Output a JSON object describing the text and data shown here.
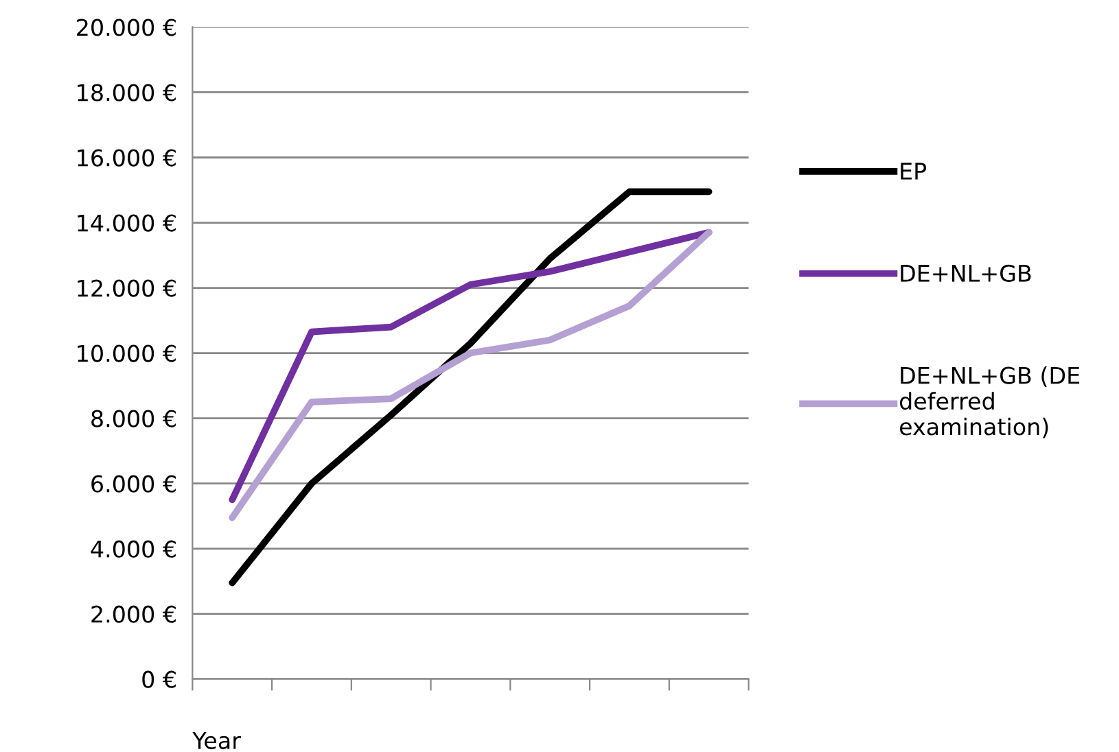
{
  "chart_data": {
    "type": "line",
    "xlabel": "Year",
    "categories": [
      null,
      null,
      null,
      null,
      null,
      null,
      null
    ],
    "series": [
      {
        "name": "EP",
        "color": "#000000",
        "values": [
          2950,
          6000,
          8100,
          10300,
          12900,
          14950,
          14950
        ]
      },
      {
        "name": "DE+NL+GB",
        "color": "#7030a0",
        "values": [
          5500,
          10650,
          10800,
          12100,
          12500,
          13100,
          13700
        ]
      },
      {
        "name": "DE+NL+GB (DE deferred examination)",
        "color": "#b4a0d2",
        "values": [
          4950,
          8500,
          8600,
          10000,
          10400,
          11450,
          13700
        ]
      }
    ],
    "ylim": [
      0,
      20000
    ],
    "yticks": [
      {
        "value": 0,
        "label": "0 €"
      },
      {
        "value": 2000,
        "label": "2.000 €"
      },
      {
        "value": 4000,
        "label": "4.000 €"
      },
      {
        "value": 6000,
        "label": "6.000 €"
      },
      {
        "value": 8000,
        "label": "8.000 €"
      },
      {
        "value": 10000,
        "label": "10.000 €"
      },
      {
        "value": 12000,
        "label": "12.000 €"
      },
      {
        "value": 14000,
        "label": "14.000 €"
      },
      {
        "value": 16000,
        "label": "16.000 €"
      },
      {
        "value": 18000,
        "label": "18.000 €"
      },
      {
        "value": 20000,
        "label": "20.000 €"
      }
    ],
    "grid": "y",
    "legend": "right",
    "marker": "none",
    "line_style": "solid"
  }
}
